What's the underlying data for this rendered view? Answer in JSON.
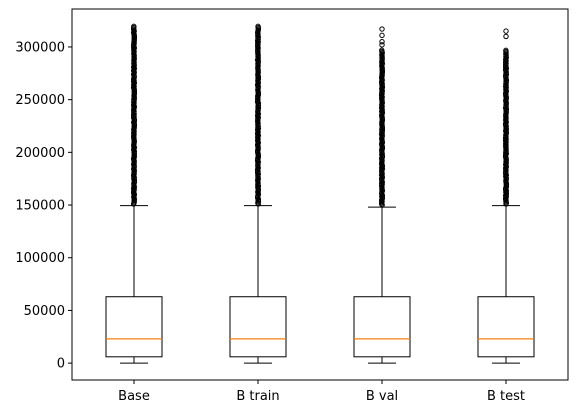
{
  "chart_data": {
    "type": "boxplot",
    "title": "",
    "xlabel": "",
    "ylabel": "",
    "ylim": [
      -16000,
      336000
    ],
    "yticks": [
      0,
      50000,
      100000,
      150000,
      200000,
      250000,
      300000
    ],
    "ytick_labels": [
      "0",
      "50000",
      "100000",
      "150000",
      "200000",
      "250000",
      "300000"
    ],
    "categories": [
      "Base",
      "B train",
      "B val",
      "B test"
    ],
    "grid": false,
    "colors": {
      "box": "#000000",
      "median": "#ff7f0e",
      "flier": "#000000"
    },
    "boxes": [
      {
        "label": "Base",
        "whisker_low": 0,
        "q1": 6000,
        "median": 23000,
        "q3": 63000,
        "whisker_high": 149500,
        "fliers_range": [
          151000,
          320000
        ],
        "fliers_max": 320000
      },
      {
        "label": "B train",
        "whisker_low": 0,
        "q1": 6000,
        "median": 23000,
        "q3": 63000,
        "whisker_high": 149500,
        "fliers_range": [
          151000,
          320000
        ],
        "fliers_max": 320000
      },
      {
        "label": "B val",
        "whisker_low": 0,
        "q1": 6000,
        "median": 23000,
        "q3": 63000,
        "whisker_high": 148000,
        "fliers_range": [
          150000,
          298000
        ],
        "fliers_top": [
          302000,
          305000,
          311000,
          317000
        ]
      },
      {
        "label": "B test",
        "whisker_low": 0,
        "q1": 6000,
        "median": 23000,
        "q3": 63000,
        "whisker_high": 149500,
        "fliers_range": [
          151000,
          297000
        ],
        "fliers_top": [
          310000,
          315000
        ]
      }
    ]
  }
}
